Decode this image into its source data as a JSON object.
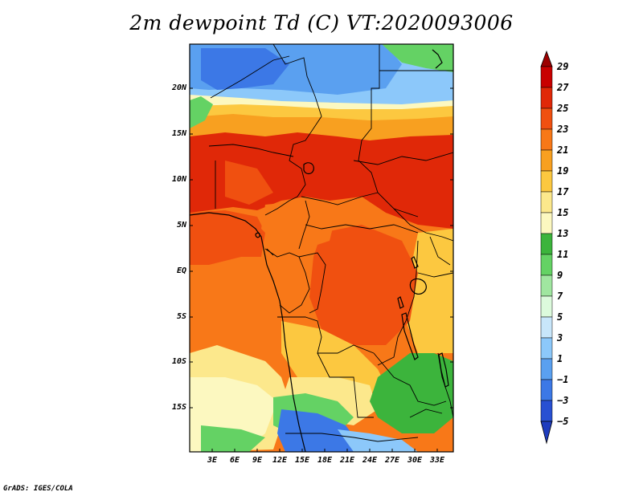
{
  "title": "2m dewpoint Td (C) VT:2020093006",
  "credit": "GrADS: IGES/COLA",
  "lat_labels": [
    "20N",
    "15N",
    "10N",
    "5N",
    "EQ",
    "5S",
    "10S",
    "15S"
  ],
  "lon_labels": [
    "3E",
    "6E",
    "9E",
    "12E",
    "15E",
    "18E",
    "21E",
    "24E",
    "27E",
    "30E",
    "33E"
  ],
  "colorbar": {
    "labels": [
      "29",
      "27",
      "25",
      "23",
      "21",
      "19",
      "17",
      "15",
      "13",
      "11",
      "9",
      "7",
      "5",
      "3",
      "1",
      "−1",
      "−3",
      "−5"
    ],
    "colors": [
      "#9c0000",
      "#c80000",
      "#e02808",
      "#f05010",
      "#f87818",
      "#f8a020",
      "#fcc840",
      "#fce88c",
      "#fcf8c0",
      "#3cb43c",
      "#64d264",
      "#a0e6a0",
      "#dcfadc",
      "#c8e6fa",
      "#8cc8fa",
      "#5aa0f0",
      "#3c78e6",
      "#2850d2",
      "#1e3cbe"
    ]
  },
  "field_colors": {
    "deep_red": "#e02808",
    "red_orange": "#f05010",
    "orange": "#f87818",
    "light_orange": "#f8a020",
    "yellow_orange": "#fcc840",
    "pale_yellow": "#fce88c",
    "cream": "#fcf8c0",
    "green": "#3cb43c",
    "light_green": "#64d264",
    "pale_blue": "#8cc8fa",
    "mid_blue": "#5aa0f0",
    "blue": "#3c78e6",
    "dark_blue": "#2850d2"
  }
}
